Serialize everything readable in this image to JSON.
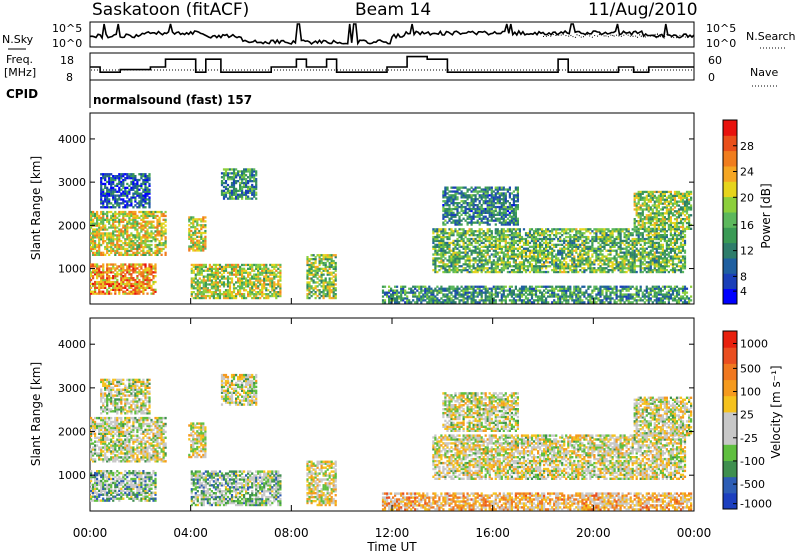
{
  "header": {
    "station": "Saskatoon (fitACF)",
    "beam": "Beam 14",
    "date": "11/Aug/2010"
  },
  "top_panels": {
    "nsky_label": "N.Sky",
    "nsky_ticks": [
      "10^5",
      "10^0"
    ],
    "nsearch_label": "N.Search",
    "nsearch_ticks": [
      "10^5",
      "10^0"
    ],
    "freq_label_line1": "Freq.",
    "freq_label_line2": "[MHz]",
    "freq_ticks": [
      "18",
      "8"
    ],
    "nave_label": "Nave",
    "nave_ticks": [
      "60",
      "0"
    ],
    "cpid_label": "CPID",
    "cpid_value": "normalsound (fast) 157"
  },
  "chart_data": [
    {
      "type": "heatmap",
      "name": "power-panel",
      "ylabel": "Slant Range [km]",
      "ylim": [
        180,
        4600
      ],
      "yticks": [
        "1000",
        "2000",
        "3000",
        "4000"
      ],
      "xlim": [
        0,
        24
      ],
      "colorbar": {
        "label": "Power [dB]",
        "ticks": [
          "28",
          "24",
          "20",
          "16",
          "12",
          "8",
          "4"
        ],
        "colors": [
          "#0000ff",
          "#1a3fb8",
          "#1f5fa0",
          "#2e7d6b",
          "#3a9a55",
          "#5cb85c",
          "#8ccf3c",
          "#e6d41c",
          "#f5a623",
          "#f07d1e",
          "#ea4f1a",
          "#e8120d"
        ]
      },
      "echo_regions": [
        {
          "t0": 0.0,
          "t1": 2.6,
          "r0": 400,
          "r1": 1100,
          "level": 0.75
        },
        {
          "t0": 0.0,
          "t1": 3.0,
          "r0": 1300,
          "r1": 2300,
          "level": 0.6
        },
        {
          "t0": 0.4,
          "t1": 2.4,
          "r0": 2400,
          "r1": 3200,
          "level": 0.2
        },
        {
          "t0": 3.9,
          "t1": 4.6,
          "r0": 1400,
          "r1": 2200,
          "level": 0.6
        },
        {
          "t0": 4.0,
          "t1": 7.6,
          "r0": 300,
          "r1": 1100,
          "level": 0.55
        },
        {
          "t0": 5.2,
          "t1": 6.6,
          "r0": 2600,
          "r1": 3300,
          "level": 0.35
        },
        {
          "t0": 8.6,
          "t1": 9.8,
          "r0": 300,
          "r1": 1300,
          "level": 0.5
        },
        {
          "t0": 11.6,
          "t1": 23.9,
          "r0": 200,
          "r1": 600,
          "level": 0.35
        },
        {
          "t0": 13.6,
          "t1": 23.6,
          "r0": 900,
          "r1": 1900,
          "level": 0.45
        },
        {
          "t0": 14.0,
          "t1": 17.0,
          "r0": 2000,
          "r1": 2900,
          "level": 0.3
        },
        {
          "t0": 21.6,
          "t1": 23.9,
          "r0": 1900,
          "r1": 2800,
          "level": 0.5
        }
      ]
    },
    {
      "type": "heatmap",
      "name": "velocity-panel",
      "ylabel": "Slant Range [km]",
      "ylim": [
        180,
        4600
      ],
      "yticks": [
        "1000",
        "2000",
        "3000",
        "4000"
      ],
      "xlim": [
        0,
        24
      ],
      "xticks": [
        "00:00",
        "04:00",
        "08:00",
        "12:00",
        "16:00",
        "20:00",
        "00:00"
      ],
      "xlabel": "Time UT",
      "colorbar": {
        "label": "Velocity [m s⁻¹]",
        "ticks": [
          "1000",
          "500",
          "100",
          "25",
          "-25",
          "-100",
          "-500",
          "-1000"
        ],
        "colors": [
          "#1c3fbf",
          "#2d5db5",
          "#3f8f4f",
          "#5fbf3f",
          "#c8c8c8",
          "#c8c8c8",
          "#f5c21e",
          "#f59a1e",
          "#f07820",
          "#ea4e20",
          "#e8200d"
        ]
      },
      "echo_regions": [
        {
          "t0": 0.0,
          "t1": 2.6,
          "r0": 400,
          "r1": 1100,
          "level": 0.35
        },
        {
          "t0": 0.0,
          "t1": 3.0,
          "r0": 1300,
          "r1": 2300,
          "level": 0.45
        },
        {
          "t0": 0.4,
          "t1": 2.4,
          "r0": 2400,
          "r1": 3200,
          "level": 0.45
        },
        {
          "t0": 3.9,
          "t1": 4.6,
          "r0": 1400,
          "r1": 2200,
          "level": 0.5
        },
        {
          "t0": 4.0,
          "t1": 7.6,
          "r0": 300,
          "r1": 1100,
          "level": 0.35
        },
        {
          "t0": 5.2,
          "t1": 6.6,
          "r0": 2600,
          "r1": 3300,
          "level": 0.45
        },
        {
          "t0": 8.6,
          "t1": 9.8,
          "r0": 300,
          "r1": 1300,
          "level": 0.5
        },
        {
          "t0": 11.6,
          "t1": 23.9,
          "r0": 200,
          "r1": 600,
          "level": 0.62
        },
        {
          "t0": 13.6,
          "t1": 23.6,
          "r0": 900,
          "r1": 1900,
          "level": 0.48
        },
        {
          "t0": 14.0,
          "t1": 17.0,
          "r0": 2000,
          "r1": 2900,
          "level": 0.47
        },
        {
          "t0": 21.6,
          "t1": 23.9,
          "r0": 1900,
          "r1": 2800,
          "level": 0.46
        }
      ]
    }
  ],
  "freq_steps": [
    {
      "t0": 0,
      "t1": 0.4,
      "f": 13
    },
    {
      "t0": 0.4,
      "t1": 1.2,
      "f": 11
    },
    {
      "t0": 1.2,
      "t1": 2.4,
      "f": 12
    },
    {
      "t0": 2.4,
      "t1": 3.0,
      "f": 13
    },
    {
      "t0": 3.0,
      "t1": 4.2,
      "f": 16
    },
    {
      "t0": 4.2,
      "t1": 4.6,
      "f": 11
    },
    {
      "t0": 4.6,
      "t1": 5.2,
      "f": 16
    },
    {
      "t0": 5.2,
      "t1": 7.2,
      "f": 11
    },
    {
      "t0": 7.2,
      "t1": 8.2,
      "f": 13
    },
    {
      "t0": 8.2,
      "t1": 8.6,
      "f": 16
    },
    {
      "t0": 8.6,
      "t1": 9.4,
      "f": 13
    },
    {
      "t0": 9.4,
      "t1": 9.8,
      "f": 16
    },
    {
      "t0": 9.8,
      "t1": 11.8,
      "f": 11
    },
    {
      "t0": 11.8,
      "t1": 12.6,
      "f": 13
    },
    {
      "t0": 12.6,
      "t1": 13.4,
      "f": 17
    },
    {
      "t0": 13.4,
      "t1": 14.2,
      "f": 16
    },
    {
      "t0": 14.2,
      "t1": 18.6,
      "f": 11
    },
    {
      "t0": 18.6,
      "t1": 19.0,
      "f": 16
    },
    {
      "t0": 19.0,
      "t1": 21.0,
      "f": 11
    },
    {
      "t0": 21.0,
      "t1": 21.6,
      "f": 13
    },
    {
      "t0": 21.6,
      "t1": 22.2,
      "f": 11
    },
    {
      "t0": 22.2,
      "t1": 24,
      "f": 13
    }
  ]
}
